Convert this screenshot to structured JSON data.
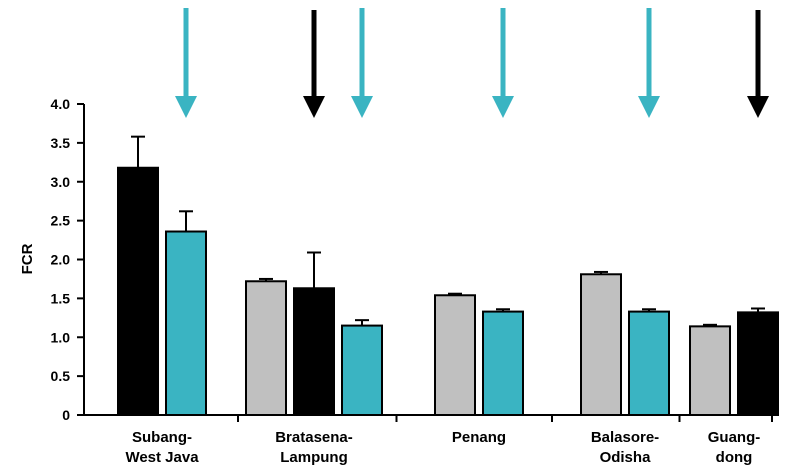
{
  "chart_data": {
    "type": "bar",
    "ylabel": "FCR",
    "ylim": [
      0,
      4
    ],
    "yticks": [
      0,
      0.5,
      1.0,
      1.5,
      2.0,
      2.5,
      3.0,
      3.5,
      4.0
    ],
    "ytick_labels": [
      "0",
      "0.5",
      "1.0",
      "1.5",
      "2.0",
      "2.5",
      "3.0",
      "3.5",
      "4.0"
    ],
    "grid": false,
    "legend": "none",
    "colors": {
      "gray": "#c0c0c0",
      "black": "#000000",
      "teal": "#3ab4c2"
    },
    "groups": [
      {
        "category_lines": [
          "Subang-",
          "West Java"
        ],
        "bars": [
          {
            "color": "black",
            "value": 3.18,
            "error": 0.4
          },
          {
            "color": "teal",
            "value": 2.36,
            "error": 0.26
          }
        ],
        "arrows": [
          "teal"
        ]
      },
      {
        "category_lines": [
          "Bratasena-",
          "Lampung"
        ],
        "bars": [
          {
            "color": "gray",
            "value": 1.72,
            "error": 0.03
          },
          {
            "color": "black",
            "value": 1.63,
            "error": 0.46
          },
          {
            "color": "teal",
            "value": 1.15,
            "error": 0.07
          }
        ],
        "arrows": [
          "black",
          "teal"
        ]
      },
      {
        "category_lines": [
          "Penang"
        ],
        "bars": [
          {
            "color": "gray",
            "value": 1.54,
            "error": 0.02
          },
          {
            "color": "teal",
            "value": 1.33,
            "error": 0.03
          }
        ],
        "arrows": [
          "teal"
        ]
      },
      {
        "category_lines": [
          "Balasore-",
          "Odisha"
        ],
        "bars": [
          {
            "color": "gray",
            "value": 1.81,
            "error": 0.03
          },
          {
            "color": "teal",
            "value": 1.33,
            "error": 0.03
          }
        ],
        "arrows": [
          "teal"
        ]
      },
      {
        "category_lines": [
          "Guang-",
          "dong"
        ],
        "bars": [
          {
            "color": "gray",
            "value": 1.14,
            "error": 0.02
          },
          {
            "color": "black",
            "value": 1.32,
            "error": 0.05
          }
        ],
        "arrows": [
          "black"
        ]
      }
    ]
  }
}
